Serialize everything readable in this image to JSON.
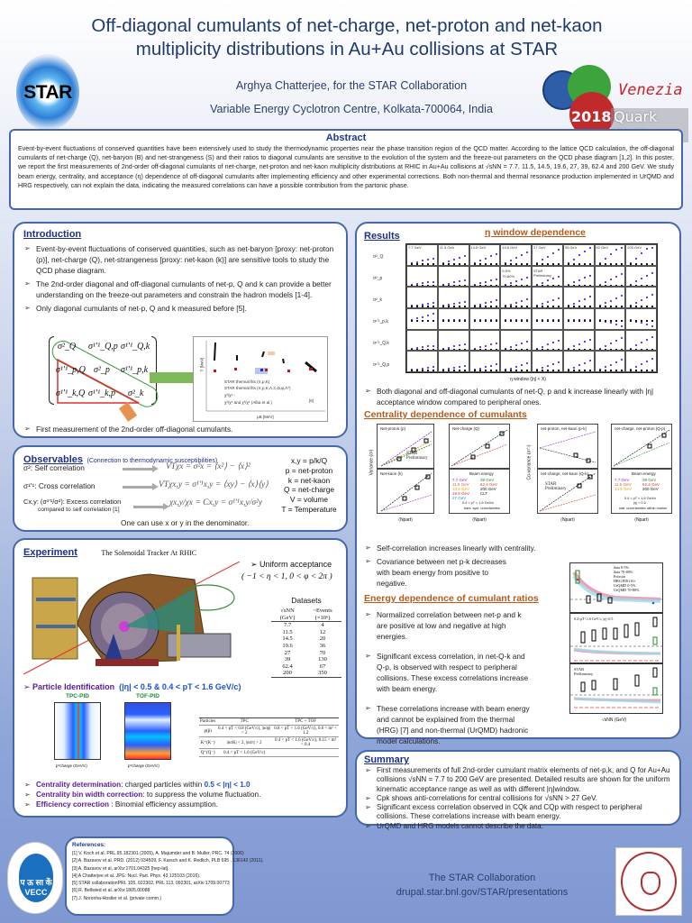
{
  "header": {
    "title": "Off-diagonal cumulants of net-charge, net-proton and net-kaon multiplicity distributions in Au+Au collisions at STAR",
    "author": "Arghya Chatterjee, for the STAR Collaboration",
    "affiliation": "Variable Energy Cyclotron Centre, Kolkata-700064, India",
    "left_logo": "STAR",
    "right_logo": {
      "city": "Venezia",
      "year": "2018",
      "name": "Quark Matter"
    }
  },
  "abstract": {
    "heading": "Abstract",
    "text": "Event-by-event fluctuations of conserved quantities have been extensively used to study the thermodynamic properties near the phase transition region of the QCD matter. According to the lattice QCD calculation, the off-diagonal cumulants of net-charge (Q), net-baryon (B) and net-strangeness (S) and their ratios to diagonal cumulants are sensitive to the evolution of the system and the freeze-out parameters on the QCD phase diagram [1,2]. In this poster, we report the first measurements of 2nd-order off-diagonal cumulants of net-charge, net-proton and net-kaon multiplicity distributions at RHIC in Au+Au collisions at √sNN = 7.7, 11.5, 14.5, 19.6, 27, 39, 62.4 and 200 GeV. We study beam energy, centrality, and acceptance (η) dependence of off-diagonal cumulants after implementing efficiency and other experimental corrections. Both non-thermal and thermal resonance production implemented in UrQMD and HRG respectively, can not explain the data, indicating the measured correlations can have a possible contribution from the partonic phase."
  },
  "introduction": {
    "heading": "Introduction",
    "bullets": [
      "Event-by-event fluctuations of conserved quantities, such as net-baryon [proxy: net-proton (p)], net-charge (Q), net-strangeness [proxy: net-kaon (k)] are sensitive tools to study the QCD phase diagram.",
      "The 2nd-order diagonal and off-diagonal cumulants of net-p, Q and k can provide a better understanding on the freeze-out parameters and constrain the hadron models [1-4].",
      "Only diagonal cumulants of net-p, Q and k measured before [5]."
    ],
    "matrix": [
      [
        "σ²_Q",
        "σ¹'¹_Q,p",
        "σ¹'¹_Q,k"
      ],
      [
        "σ¹'¹_p,Q",
        "σ²_p",
        "σ¹'¹_p,k"
      ],
      [
        "σ¹'¹_k,Q",
        "σ¹'¹_k,p",
        "σ²_k"
      ]
    ],
    "phase_plot": {
      "xlabel": "μB [MeV]",
      "ylabel": "T [MeV]",
      "legend": [
        "STAR thermal fits (π,p,K)",
        "STAR thermal fits (π,p,K,Λ,Ξ,Ω,φ,Λ*)",
        "χ²/χ⁶ -",
        "χ²/χ⁶ and χ³/χ⁶ (Alba et al.)"
      ],
      "ref": "[6]",
      "xticks": [
        "0",
        "50",
        "100",
        "150",
        "200",
        "250"
      ],
      "yticks": [
        "100",
        "120",
        "140",
        "160",
        "180"
      ]
    },
    "last_bullet": "First measurement of the 2nd-order off-diagonal cumulants."
  },
  "observables": {
    "heading": "Observables",
    "subheading": "(Connection to thermodynamic susceptibilities)",
    "rows": [
      {
        "label": "σ²: Self correlation",
        "eq": "VTχx = σ²x = ⟨x²⟩ − ⟨x⟩²"
      },
      {
        "label": "σ¹'¹: Cross correlation",
        "eq": "VTχx,y = σ¹'¹x,y = ⟨xy⟩ − ⟨x⟩⟨y⟩"
      },
      {
        "label": "Cx,y: (σ¹'¹/σ²): Excess correlation",
        "label2": "compared to self correlation [1]",
        "eq": "χx,y/χx = Cx,y = σ¹'¹x,y/σ²y"
      }
    ],
    "definitions": [
      "x,y = p/k/Q",
      "p = net-proton",
      "k = net-kaon",
      "Q = net-charge",
      "V = volume",
      "T = Temperature"
    ],
    "note": "One can use x or y in the denominator."
  },
  "experiment": {
    "heading": "Experiment",
    "subtitle": "The Solenoidal Tracker At RHIC",
    "detector_labels": [
      "Coils",
      "Magnet",
      "Silicon Vertex Tracker",
      "E-M Calorimeter",
      "Time Projection Chamber (TPC)",
      "Time Of Flight (ToF)",
      "Electronics Platforms",
      "Forward Time Projection Chamber"
    ],
    "acceptance_label": "Uniform acceptance",
    "acceptance_eq": "( −1 < η < 1,   0 < φ < 2π )",
    "datasets": {
      "heading": "Datasets",
      "columns": [
        "√sNN (GeV)",
        "~Events (×10⁶)"
      ],
      "rows": [
        [
          "7.7",
          "4"
        ],
        [
          "11.5",
          "12"
        ],
        [
          "14.5",
          "20"
        ],
        [
          "19.6",
          "36"
        ],
        [
          "27",
          "70"
        ],
        [
          "39",
          "130"
        ],
        [
          "62.4",
          "67"
        ],
        [
          "200",
          "350"
        ]
      ]
    },
    "pid_label": "Particle Identification",
    "pid_cuts": "(|η| < 0.5  &  0.4 < pT < 1.6 GeV/c)",
    "pid_plots": [
      {
        "title": "TPC-PID",
        "xlabel": "p*charge (GeV/c)",
        "ylabel": "dE/dx (keV/cm)"
      },
      {
        "title": "TOF-PID",
        "xlabel": "p*charge (GeV/c)",
        "ylabel": "m² (GeV/c²)²"
      }
    ],
    "pid_table": {
      "columns": [
        "Particles",
        "TPC",
        "TPC + TOF"
      ],
      "rows": [
        [
          "p(p̄)",
          "0.4 < pT < 0.8 (GeV/c), |nσp| < 2",
          "0.8 < pT < 1.6 (GeV/c), 0.6 < m² < 1.2"
        ],
        [
          "K⁺(K⁻)",
          "|nσK| < 2, |nσπ| > 2",
          "0.4 < pT < 1.6 (GeV/c), 0.15 < m² < 0.4"
        ],
        [
          "Q⁺(Q⁻)",
          "0.4 < pT < 1.6 (GeV/c)",
          ""
        ]
      ]
    },
    "bullets": [
      {
        "key": "Centrality determination",
        "text": ": charged particles  within ",
        "value": "0.5 < |η| < 1.0"
      },
      {
        "key": "Centrality bin width correction",
        "text": ": to suppress the volume fluctuation.",
        "value": ""
      },
      {
        "key": "Efficiency correction",
        "text": " : Binomial efficiency assumption.",
        "value": ""
      }
    ]
  },
  "results": {
    "heading": "Results",
    "eta_heading": "η window dependence",
    "eta_energies": [
      "7.7 GeV",
      "11.5 GeV",
      "14.5 GeV",
      "19.6 GeV",
      "27 GeV",
      "39 GeV",
      "62 GeV",
      "200 GeV"
    ],
    "eta_ylabels": [
      "σ²_Q",
      "σ²_p",
      "σ²_k",
      "σ¹'¹_p,k",
      "σ¹'¹_Q,k",
      "σ¹'¹_Q,p"
    ],
    "eta_legend": [
      "0-5%",
      "70-80%"
    ],
    "eta_prelim": "STAR Preliminary",
    "eta_xlabel": "η window (|η| < X)",
    "eta_bullet": "Both diagonal and off-diagonal cumulants of net-Q, p and k  increase linearly with |η| acceptance window compared to peripheral ones.",
    "centrality_heading": "Centrality dependence of cumulants",
    "centrality_panels": [
      "Net-proton (p)",
      "Net-charge (Q)",
      "Net-kaon (k)",
      "net-proton, net-kaon (p-k)",
      "net-charge, net-proton (Q-p)",
      "net-charge, net-kaon (Q-k)"
    ],
    "centrality_ylabels": [
      "Variance (σ²)",
      "Co-variance (σ¹'¹)"
    ],
    "centrality_xlabel": "⟨Npart⟩",
    "centrality_legend": {
      "title": "Beam energy",
      "entries": [
        "7.7 GeV",
        "11.5 GeV",
        "14.5 GeV",
        "19.6 GeV",
        "27 GeV",
        "39 GeV",
        "62.4 GeV",
        "200 GeV",
        "CLT"
      ],
      "notes": [
        "0.4 < pT < 1.6 GeV/c",
        "|η| < 0.5",
        "bars: syst. uncertainties",
        "stat. uncertainties within marker"
      ]
    },
    "centrality_prelim": "STAR Preliminary",
    "centrality_bullets": [
      "Self-correlation increases linearly with centrality.",
      "Covariance between net p-k decreases with beam energy from positive to negative."
    ],
    "energy_heading": "Energy dependence of cumulant ratios",
    "energy_bullets": [
      "Normalized correlation between net-p and k are positive at low and negative at high energies.",
      "Significant excess correlation, in net-Q-k and Q-p, is observed with respect to peripheral collisions. These excess correlations increase with beam energy.",
      "These correlations increase with beam energy and cannot be explained from the thermal (HRG) [7] and non-thermal (UrQMD) hadronic model calculations."
    ],
    "energy_plot": {
      "ylabels": [
        "Cp,k = σ¹'¹p,k/σ²k",
        "CQ,k = σ¹'¹Q,k/σ²k",
        "CQ,p = σ¹'¹Q,p/σ²p"
      ],
      "legend": [
        "data 0-5%",
        "data 70-80%",
        "Poisson",
        "HRG PDG16+",
        "UrQMD 0-5%",
        "UrQMD 70-80%"
      ],
      "cut_label": "0.4<pT<1.6 GeV/c, |η|<0.5",
      "prelim": "STAR Preliminary",
      "xlabel": "√sNN (GeV)",
      "xticks": [
        "10",
        "20",
        "60",
        "200"
      ]
    }
  },
  "summary": {
    "heading": "Summary",
    "bullets": [
      "First measurements of full 2nd-order cumulant matrix elements of net-p,k, and Q for Au+Au collisions √sNN = 7.7 to 200 GeV are presented. Detailed results are shown for the uniform kinematic acceptance range as well as with different |η|window.",
      "Cpk shows anti-correlations for central collisions for √sNN > 27 GeV.",
      "Significant excess correlation observed in CQk and CQp with respect to peripheral collisions. These correlations increase with beam energy.",
      "UrQMD and HRG models cannot describe the data."
    ]
  },
  "references": {
    "heading": "References:",
    "items": [
      "[1] V. Koch et al.  PRL.95.182301 (2005), A. Majumder and B. Muller, PRC. 74 (2006)",
      "[2]  A. Bazavov et al. PRD. (2012) 034509, F. Karsch and K. Redlich, PLB 695 , 136142 (2011).",
      "[3] A. Bazavov et al, arXiv:1701.04325 [hep-lat].",
      "[4]  A Chatterjee et al.  JPG: Nucl. Part. Phys. 43 125103 (2016).",
      "[5] STAR collaborationPRL 105, 022302, PRL 113, 092301, arXiv:1709.00773",
      "[6] R. Bellwied et al. arXiv:1805.00088",
      "[7] J. Noronha-Hostler et al. (private comm.)"
    ]
  },
  "footer": {
    "collab": "The STAR Collaboration",
    "url": "drupal.star.bnl.gov/STAR/presentations",
    "vecc_hindi": "प ऊ सा कें",
    "vecc_en": "VECC"
  },
  "colors": {
    "title": "#1f3a6e",
    "section_heading": "#1c2f8a",
    "sub_heading": "#b65a1c",
    "box_border": "#4768a8",
    "pid_key": "#5a1a9a",
    "pid_value": "#1c4fd0"
  }
}
